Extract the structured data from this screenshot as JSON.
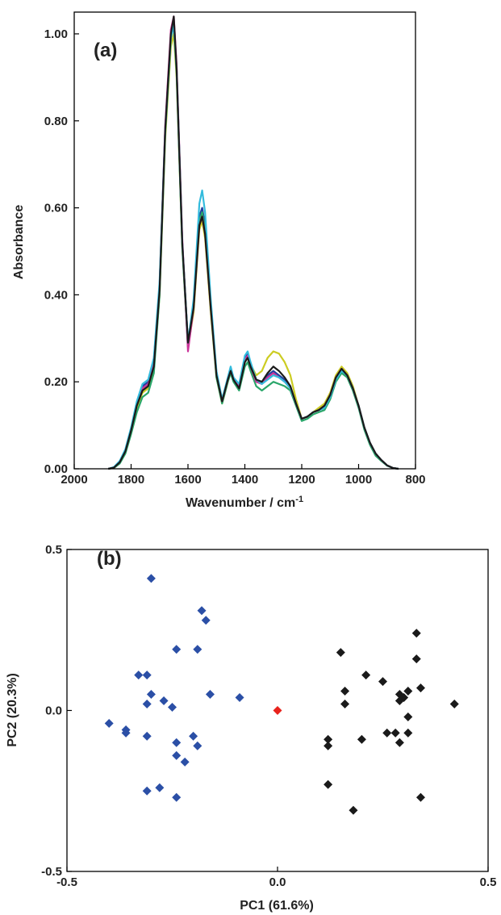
{
  "chart_data": [
    {
      "type": "line",
      "panel_label": "(a)",
      "xlabel": "Wavenumber / cm",
      "xlabel_sup": "-1",
      "ylabel": "Absorbance",
      "xlim": [
        2000,
        800
      ],
      "ylim": [
        0,
        1.05
      ],
      "x_ticks": [
        2000,
        1800,
        1600,
        1400,
        1200,
        1000,
        800
      ],
      "x_tick_labels": [
        "2000",
        "1800",
        "1600",
        "1400",
        "1200",
        "1000",
        "800"
      ],
      "y_ticks": [
        0,
        0.2,
        0.4,
        0.6,
        0.8,
        1.0
      ],
      "y_tick_labels": [
        "0.00",
        "0.20",
        "0.40",
        "0.60",
        "0.80",
        "1.00"
      ],
      "grid": false,
      "x": [
        1880,
        1860,
        1840,
        1820,
        1800,
        1780,
        1760,
        1740,
        1720,
        1700,
        1680,
        1660,
        1650,
        1640,
        1620,
        1600,
        1580,
        1560,
        1550,
        1540,
        1520,
        1500,
        1480,
        1460,
        1450,
        1440,
        1420,
        1400,
        1390,
        1380,
        1360,
        1340,
        1320,
        1300,
        1280,
        1260,
        1240,
        1220,
        1200,
        1180,
        1160,
        1140,
        1120,
        1100,
        1080,
        1060,
        1040,
        1020,
        1000,
        980,
        960,
        940,
        920,
        900,
        880,
        860
      ],
      "series": [
        {
          "color": "#1f3f9f",
          "values": [
            0,
            0.003,
            0.015,
            0.04,
            0.09,
            0.15,
            0.19,
            0.2,
            0.25,
            0.42,
            0.78,
            1.0,
            1.03,
            0.92,
            0.52,
            0.29,
            0.38,
            0.58,
            0.6,
            0.56,
            0.38,
            0.22,
            0.155,
            0.205,
            0.23,
            0.205,
            0.19,
            0.255,
            0.265,
            0.24,
            0.205,
            0.2,
            0.215,
            0.225,
            0.215,
            0.205,
            0.19,
            0.15,
            0.115,
            0.12,
            0.13,
            0.135,
            0.14,
            0.165,
            0.205,
            0.225,
            0.215,
            0.185,
            0.145,
            0.095,
            0.06,
            0.035,
            0.02,
            0.008,
            0.002,
            0
          ]
        },
        {
          "color": "#cccc22",
          "values": [
            0,
            0.003,
            0.014,
            0.038,
            0.085,
            0.14,
            0.175,
            0.185,
            0.23,
            0.4,
            0.76,
            0.97,
            1.0,
            0.9,
            0.51,
            0.28,
            0.36,
            0.55,
            0.57,
            0.53,
            0.36,
            0.21,
            0.15,
            0.2,
            0.225,
            0.205,
            0.185,
            0.245,
            0.255,
            0.24,
            0.215,
            0.225,
            0.255,
            0.27,
            0.265,
            0.245,
            0.215,
            0.16,
            0.115,
            0.12,
            0.13,
            0.14,
            0.15,
            0.175,
            0.215,
            0.235,
            0.22,
            0.19,
            0.145,
            0.095,
            0.06,
            0.035,
            0.02,
            0.008,
            0.002,
            0
          ]
        },
        {
          "color": "#2aa66a",
          "values": [
            0,
            0.002,
            0.012,
            0.035,
            0.08,
            0.13,
            0.165,
            0.175,
            0.22,
            0.4,
            0.77,
            0.99,
            1.02,
            0.91,
            0.51,
            0.28,
            0.37,
            0.57,
            0.59,
            0.55,
            0.37,
            0.21,
            0.15,
            0.2,
            0.22,
            0.2,
            0.18,
            0.235,
            0.245,
            0.225,
            0.19,
            0.18,
            0.19,
            0.2,
            0.195,
            0.19,
            0.18,
            0.145,
            0.11,
            0.115,
            0.125,
            0.13,
            0.135,
            0.16,
            0.2,
            0.22,
            0.21,
            0.18,
            0.14,
            0.09,
            0.055,
            0.03,
            0.018,
            0.007,
            0.002,
            0
          ]
        },
        {
          "color": "#cc3399",
          "values": [
            0,
            0.003,
            0.016,
            0.042,
            0.092,
            0.15,
            0.185,
            0.195,
            0.24,
            0.42,
            0.79,
            1.01,
            1.04,
            0.93,
            0.53,
            0.27,
            0.37,
            0.56,
            0.58,
            0.54,
            0.37,
            0.22,
            0.155,
            0.205,
            0.23,
            0.21,
            0.19,
            0.25,
            0.26,
            0.235,
            0.2,
            0.195,
            0.21,
            0.22,
            0.21,
            0.2,
            0.185,
            0.15,
            0.115,
            0.12,
            0.13,
            0.135,
            0.145,
            0.17,
            0.21,
            0.23,
            0.215,
            0.185,
            0.145,
            0.095,
            0.06,
            0.035,
            0.02,
            0.008,
            0.002,
            0
          ]
        },
        {
          "color": "#33bbdd",
          "values": [
            0,
            0.004,
            0.018,
            0.045,
            0.095,
            0.155,
            0.195,
            0.205,
            0.255,
            0.43,
            0.78,
            0.99,
            1.02,
            0.92,
            0.52,
            0.29,
            0.39,
            0.61,
            0.64,
            0.59,
            0.39,
            0.225,
            0.16,
            0.21,
            0.235,
            0.21,
            0.195,
            0.26,
            0.27,
            0.245,
            0.205,
            0.195,
            0.205,
            0.215,
            0.21,
            0.2,
            0.185,
            0.15,
            0.115,
            0.12,
            0.13,
            0.135,
            0.14,
            0.165,
            0.205,
            0.225,
            0.215,
            0.185,
            0.145,
            0.095,
            0.06,
            0.035,
            0.02,
            0.008,
            0.002,
            0
          ]
        },
        {
          "color": "#1a1a1a",
          "values": [
            0,
            0.003,
            0.015,
            0.04,
            0.088,
            0.145,
            0.18,
            0.19,
            0.235,
            0.41,
            0.78,
            1.0,
            1.04,
            0.92,
            0.52,
            0.29,
            0.37,
            0.56,
            0.58,
            0.54,
            0.37,
            0.215,
            0.155,
            0.205,
            0.225,
            0.205,
            0.185,
            0.245,
            0.255,
            0.235,
            0.205,
            0.2,
            0.22,
            0.235,
            0.225,
            0.21,
            0.19,
            0.15,
            0.115,
            0.12,
            0.13,
            0.135,
            0.145,
            0.17,
            0.21,
            0.23,
            0.215,
            0.185,
            0.145,
            0.095,
            0.06,
            0.035,
            0.02,
            0.008,
            0.002,
            0
          ]
        }
      ]
    },
    {
      "type": "scatter",
      "panel_label": "(b)",
      "xlabel": "PC1  (61.6%)",
      "ylabel": "PC2  (20.3%)",
      "xlim": [
        -0.5,
        0.5
      ],
      "ylim": [
        -0.5,
        0.5
      ],
      "x_ticks": [
        -0.5,
        0.0,
        0.5
      ],
      "x_tick_labels": [
        "-0.5",
        "0.0",
        "0.5"
      ],
      "y_ticks": [
        -0.5,
        0.0,
        0.5
      ],
      "y_tick_labels": [
        "-0.5",
        "0.0",
        "0.5"
      ],
      "grid": false,
      "marker": "diamond",
      "series": [
        {
          "color": "#2b4fa6",
          "points": [
            [
              -0.3,
              0.41
            ],
            [
              -0.18,
              0.31
            ],
            [
              -0.17,
              0.28
            ],
            [
              -0.24,
              0.19
            ],
            [
              -0.19,
              0.19
            ],
            [
              -0.33,
              0.11
            ],
            [
              -0.31,
              0.11
            ],
            [
              -0.3,
              0.05
            ],
            [
              -0.27,
              0.03
            ],
            [
              -0.16,
              0.05
            ],
            [
              -0.09,
              0.04
            ],
            [
              -0.31,
              0.02
            ],
            [
              -0.25,
              0.01
            ],
            [
              -0.4,
              -0.04
            ],
            [
              -0.36,
              -0.06
            ],
            [
              -0.36,
              -0.07
            ],
            [
              -0.31,
              -0.08
            ],
            [
              -0.2,
              -0.08
            ],
            [
              -0.24,
              -0.1
            ],
            [
              -0.19,
              -0.11
            ],
            [
              -0.24,
              -0.14
            ],
            [
              -0.22,
              -0.16
            ],
            [
              -0.31,
              -0.25
            ],
            [
              -0.28,
              -0.24
            ],
            [
              -0.24,
              -0.27
            ]
          ]
        },
        {
          "color": "#1a1a1a",
          "points": [
            [
              0.33,
              0.24
            ],
            [
              0.15,
              0.18
            ],
            [
              0.33,
              0.16
            ],
            [
              0.21,
              0.11
            ],
            [
              0.25,
              0.09
            ],
            [
              0.16,
              0.06
            ],
            [
              0.31,
              0.06
            ],
            [
              0.34,
              0.07
            ],
            [
              0.29,
              0.05
            ],
            [
              0.3,
              0.04
            ],
            [
              0.29,
              0.03
            ],
            [
              0.42,
              0.02
            ],
            [
              0.16,
              0.02
            ],
            [
              0.31,
              -0.02
            ],
            [
              0.26,
              -0.07
            ],
            [
              0.28,
              -0.07
            ],
            [
              0.31,
              -0.07
            ],
            [
              0.2,
              -0.09
            ],
            [
              0.12,
              -0.09
            ],
            [
              0.29,
              -0.1
            ],
            [
              0.12,
              -0.11
            ],
            [
              0.12,
              -0.23
            ],
            [
              0.18,
              -0.31
            ],
            [
              0.34,
              -0.27
            ]
          ]
        },
        {
          "color": "#e8221c",
          "points": [
            [
              0.0,
              0.0
            ]
          ]
        }
      ]
    }
  ]
}
